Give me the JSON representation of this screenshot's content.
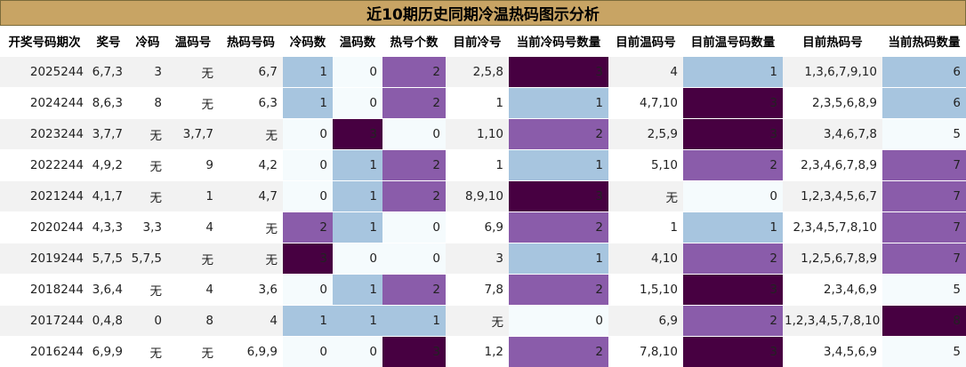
{
  "title": "近10期历史同期冷温热码图示分析",
  "columns": [
    "开奖号码期次",
    "奖号",
    "冷码",
    "温码号",
    "热码号码",
    "冷码数",
    "温码数",
    "热号个数",
    "目前冷号",
    "当前冷码号数量",
    "目前温码号",
    "目前温号码数量",
    "目前热码号",
    "当前热码数量"
  ],
  "rows": [
    [
      "2025244",
      "6,7,3",
      "3",
      "无",
      "6,7",
      "1",
      "0",
      "2",
      "2,5,8",
      "3",
      "4",
      "1",
      "1,3,6,7,9,10",
      "6"
    ],
    [
      "2024244",
      "8,6,3",
      "8",
      "无",
      "6,3",
      "1",
      "0",
      "2",
      "1",
      "1",
      "4,7,10",
      "3",
      "2,3,5,6,8,9",
      "6"
    ],
    [
      "2023244",
      "3,7,7",
      "无",
      "3,7,7",
      "无",
      "0",
      "3",
      "0",
      "1,10",
      "2",
      "2,5,9",
      "3",
      "3,4,6,7,8",
      "5"
    ],
    [
      "2022244",
      "4,9,2",
      "无",
      "9",
      "4,2",
      "0",
      "1",
      "2",
      "1",
      "1",
      "5,10",
      "2",
      "2,3,4,6,7,8,9",
      "7"
    ],
    [
      "2021244",
      "4,1,7",
      "无",
      "1",
      "4,7",
      "0",
      "1",
      "2",
      "8,9,10",
      "3",
      "无",
      "0",
      "1,2,3,4,5,6,7",
      "7"
    ],
    [
      "2020244",
      "4,3,3",
      "3,3",
      "4",
      "无",
      "2",
      "1",
      "0",
      "6,9",
      "2",
      "1",
      "1",
      "2,3,4,5,7,8,10",
      "7"
    ],
    [
      "2019244",
      "5,7,5",
      "5,7,5",
      "无",
      "无",
      "3",
      "0",
      "0",
      "3",
      "1",
      "4,10",
      "2",
      "1,2,5,6,7,8,9",
      "7"
    ],
    [
      "2018244",
      "3,6,4",
      "无",
      "4",
      "3,6",
      "0",
      "1",
      "2",
      "7,8",
      "2",
      "1,5,10",
      "3",
      "2,3,4,6,9",
      "5"
    ],
    [
      "2017244",
      "0,4,8",
      "0",
      "8",
      "4",
      "1",
      "1",
      "1",
      "无",
      "0",
      "6,9",
      "2",
      "1,2,3,4,5,7,8,10",
      "8"
    ],
    [
      "2016244",
      "6,9,9",
      "无",
      "无",
      "6,9,9",
      "0",
      "0",
      "3",
      "1,2",
      "2",
      "7,8,10",
      "3",
      "3,4,5,6,9",
      "5"
    ]
  ],
  "heat_columns": [
    5,
    6,
    7,
    9,
    11,
    13
  ],
  "heat_levels": [
    [
      1,
      0,
      2,
      3,
      1,
      1
    ],
    [
      1,
      0,
      2,
      1,
      3,
      1
    ],
    [
      0,
      3,
      0,
      2,
      3,
      0
    ],
    [
      0,
      1,
      2,
      1,
      2,
      2
    ],
    [
      0,
      1,
      2,
      3,
      0,
      2
    ],
    [
      2,
      1,
      0,
      2,
      1,
      2
    ],
    [
      3,
      0,
      0,
      1,
      2,
      2
    ],
    [
      0,
      1,
      2,
      2,
      3,
      0
    ],
    [
      1,
      1,
      1,
      0,
      2,
      3
    ],
    [
      0,
      0,
      3,
      2,
      3,
      0
    ]
  ],
  "colors": {
    "title_bg": "#c8a464",
    "level_0": "#f5fbfd",
    "level_1": "#a7c5df",
    "level_2": "#8a5caa",
    "level_3": "#470041",
    "row_odd": "#f2f2f2",
    "row_even": "#ffffff"
  }
}
